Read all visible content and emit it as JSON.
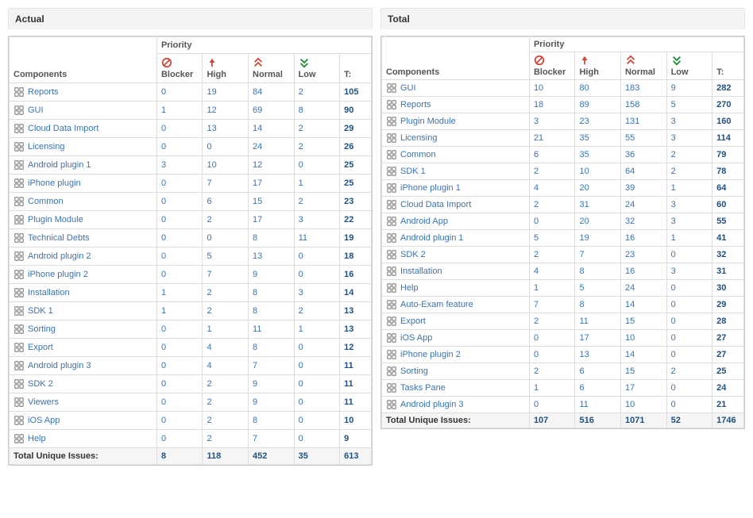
{
  "labels": {
    "components": "Components",
    "priority": "Priority",
    "blocker": "Blocker",
    "high": "High",
    "normal": "Normal",
    "low": "Low",
    "t": "T:",
    "totalUnique": "Total Unique Issues:"
  },
  "colors": {
    "link": "#3b73af",
    "totalLink": "#205081",
    "red": "#d04437",
    "green": "#14892c",
    "headerBg": "#f4f4f4",
    "border": "#dddddd"
  },
  "panels": [
    {
      "title": "Actual",
      "compact": false,
      "rows": [
        {
          "name": "Reports",
          "v": [
            0,
            19,
            84,
            2,
            105
          ]
        },
        {
          "name": "GUI",
          "v": [
            1,
            12,
            69,
            8,
            90
          ]
        },
        {
          "name": "Cloud Data Import",
          "v": [
            0,
            13,
            14,
            2,
            29
          ]
        },
        {
          "name": "Licensing",
          "v": [
            0,
            0,
            24,
            2,
            26
          ]
        },
        {
          "name": "Android plugin 1",
          "v": [
            3,
            10,
            12,
            0,
            25
          ]
        },
        {
          "name": "iPhone plugin",
          "v": [
            0,
            7,
            17,
            1,
            25
          ]
        },
        {
          "name": "Common",
          "v": [
            0,
            6,
            15,
            2,
            23
          ]
        },
        {
          "name": "Plugin Module",
          "v": [
            0,
            2,
            17,
            3,
            22
          ]
        },
        {
          "name": "Technical Debts",
          "v": [
            0,
            0,
            8,
            11,
            19
          ]
        },
        {
          "name": "Android plugin 2",
          "v": [
            0,
            5,
            13,
            0,
            18
          ]
        },
        {
          "name": "iPhone plugin 2",
          "v": [
            0,
            7,
            9,
            0,
            16
          ]
        },
        {
          "name": "Installation",
          "v": [
            1,
            2,
            8,
            3,
            14
          ]
        },
        {
          "name": "SDK 1",
          "v": [
            1,
            2,
            8,
            2,
            13
          ]
        },
        {
          "name": "Sorting",
          "v": [
            0,
            1,
            11,
            1,
            13
          ]
        },
        {
          "name": "Export",
          "v": [
            0,
            4,
            8,
            0,
            12
          ]
        },
        {
          "name": "Android plugin 3",
          "v": [
            0,
            4,
            7,
            0,
            11
          ]
        },
        {
          "name": "SDK 2",
          "v": [
            0,
            2,
            9,
            0,
            11
          ]
        },
        {
          "name": "Viewers",
          "v": [
            0,
            2,
            9,
            0,
            11
          ]
        },
        {
          "name": "iOS App",
          "v": [
            0,
            2,
            8,
            0,
            10
          ]
        },
        {
          "name": "Help",
          "v": [
            0,
            2,
            7,
            0,
            9
          ]
        }
      ],
      "totals": [
        8,
        118,
        452,
        35,
        613
      ]
    },
    {
      "title": "Total",
      "compact": true,
      "rows": [
        {
          "name": "GUI",
          "v": [
            10,
            80,
            183,
            9,
            282
          ]
        },
        {
          "name": "Reports",
          "v": [
            18,
            89,
            158,
            5,
            270
          ]
        },
        {
          "name": "Plugin Module",
          "v": [
            3,
            23,
            131,
            3,
            160
          ]
        },
        {
          "name": "Licensing",
          "v": [
            21,
            35,
            55,
            3,
            114
          ]
        },
        {
          "name": "Common",
          "v": [
            6,
            35,
            36,
            2,
            79
          ]
        },
        {
          "name": "SDK 1",
          "v": [
            2,
            10,
            64,
            2,
            78
          ]
        },
        {
          "name": "iPhone plugin 1",
          "v": [
            4,
            20,
            39,
            1,
            64
          ]
        },
        {
          "name": "Cloud Data Import",
          "v": [
            2,
            31,
            24,
            3,
            60
          ]
        },
        {
          "name": "Android App",
          "v": [
            0,
            20,
            32,
            3,
            55
          ]
        },
        {
          "name": "Android plugin 1",
          "v": [
            5,
            19,
            16,
            1,
            41
          ]
        },
        {
          "name": "SDK 2",
          "v": [
            2,
            7,
            23,
            0,
            32
          ]
        },
        {
          "name": "Installation",
          "v": [
            4,
            8,
            16,
            3,
            31
          ]
        },
        {
          "name": "Help",
          "v": [
            1,
            5,
            24,
            0,
            30
          ]
        },
        {
          "name": "Auto-Exam feature",
          "v": [
            7,
            8,
            14,
            0,
            29
          ]
        },
        {
          "name": "Export",
          "v": [
            2,
            11,
            15,
            0,
            28
          ]
        },
        {
          "name": "iOS App",
          "v": [
            0,
            17,
            10,
            0,
            27
          ]
        },
        {
          "name": "iPhone plugin 2",
          "v": [
            0,
            13,
            14,
            0,
            27
          ]
        },
        {
          "name": "Sorting",
          "v": [
            2,
            6,
            15,
            2,
            25
          ]
        },
        {
          "name": "Tasks Pane",
          "v": [
            1,
            6,
            17,
            0,
            24
          ]
        },
        {
          "name": "Android plugin 3",
          "v": [
            0,
            11,
            10,
            0,
            21
          ]
        }
      ],
      "totals": [
        107,
        516,
        1071,
        52,
        1746
      ]
    }
  ]
}
